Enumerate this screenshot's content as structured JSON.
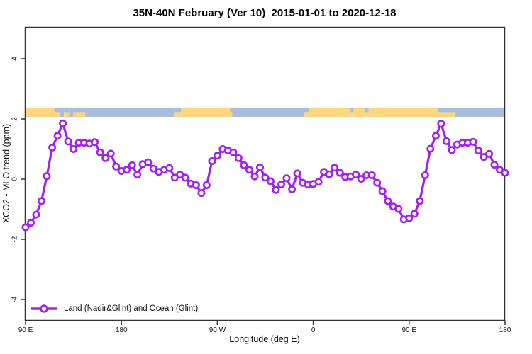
{
  "chart_data": {
    "type": "line",
    "title": "35N-40N February (Ver 10)  2015-01-01 to 2020-12-18",
    "xlabel": "Longitude (deg E)",
    "ylabel": "XCO2 - MLO trend (ppm)",
    "grid": false,
    "ylim": [
      -4.7,
      5.05
    ],
    "x_axis_note": "longitude wraps eastward from 90E through 180, 90W, 0, 90E to 180; x stored as degrees east of start (0-450)",
    "xlim": [
      0,
      450
    ],
    "x_ticks": [
      {
        "pos": 0,
        "label": "90 E"
      },
      {
        "pos": 90,
        "label": "180"
      },
      {
        "pos": 180,
        "label": "90 W"
      },
      {
        "pos": 270,
        "label": "0"
      },
      {
        "pos": 360,
        "label": "90 E"
      },
      {
        "pos": 450,
        "label": "180"
      }
    ],
    "y_ticks": [
      {
        "pos": -4,
        "label": "-4"
      },
      {
        "pos": -2,
        "label": "-2"
      },
      {
        "pos": 0,
        "label": "0"
      },
      {
        "pos": 2,
        "label": "2"
      },
      {
        "pos": 4,
        "label": "4"
      }
    ],
    "legend": {
      "position": "bottom-left",
      "label": "Land (Nadir&Glint) and Ocean (Glint)"
    },
    "colors": {
      "line": "#A020F0",
      "land": "#FCD77F",
      "ocean": "#A9BEDB",
      "axis": "#333333"
    },
    "surface_band": {
      "description": "land(yellow)/ocean(blue) strip along longitude",
      "y_top": 2.38,
      "y_bottom": 2.07,
      "segments": [
        {
          "from": 0,
          "to": 27,
          "type": "land"
        },
        {
          "from": 27,
          "to": 32,
          "type": "mixed"
        },
        {
          "from": 32,
          "to": 36,
          "type": "ocean"
        },
        {
          "from": 36,
          "to": 41,
          "type": "mixed"
        },
        {
          "from": 41,
          "to": 45,
          "type": "ocean"
        },
        {
          "from": 45,
          "to": 56,
          "type": "mixed"
        },
        {
          "from": 56,
          "to": 140,
          "type": "ocean"
        },
        {
          "from": 140,
          "to": 146,
          "type": "mixed"
        },
        {
          "from": 146,
          "to": 192,
          "type": "land"
        },
        {
          "from": 192,
          "to": 194,
          "type": "mixed"
        },
        {
          "from": 194,
          "to": 261,
          "type": "ocean"
        },
        {
          "from": 261,
          "to": 266,
          "type": "mixed"
        },
        {
          "from": 266,
          "to": 305,
          "type": "land"
        },
        {
          "from": 305,
          "to": 308,
          "type": "mixed"
        },
        {
          "from": 308,
          "to": 318,
          "type": "land"
        },
        {
          "from": 318,
          "to": 322,
          "type": "mixed"
        },
        {
          "from": 322,
          "to": 387,
          "type": "land"
        },
        {
          "from": 387,
          "to": 403,
          "type": "mixed"
        },
        {
          "from": 403,
          "to": 450,
          "type": "ocean"
        }
      ]
    },
    "series": [
      {
        "name": "Land (Nadir&Glint) and Ocean (Glint)",
        "color": "#A020F0",
        "marker": "open-circle",
        "x": [
          0,
          5,
          10,
          15,
          20,
          25,
          30,
          35,
          40,
          45,
          50,
          55,
          60,
          65,
          70,
          75,
          80,
          85,
          90,
          95,
          100,
          105,
          110,
          115,
          120,
          125,
          130,
          135,
          140,
          145,
          150,
          155,
          160,
          165,
          170,
          175,
          180,
          185,
          190,
          195,
          200,
          205,
          210,
          215,
          220,
          225,
          230,
          235,
          240,
          245,
          250,
          255,
          260,
          265,
          270,
          275,
          280,
          285,
          290,
          295,
          300,
          305,
          310,
          315,
          320,
          325,
          330,
          335,
          340,
          345,
          350,
          355,
          360,
          365,
          370,
          375,
          380,
          385,
          390,
          395,
          400,
          405,
          410,
          415,
          420,
          425,
          430,
          435,
          440,
          445,
          450
        ],
        "y": [
          -1.6,
          -1.45,
          -1.18,
          -0.73,
          0.1,
          1.05,
          1.44,
          1.85,
          1.25,
          1.0,
          1.21,
          1.21,
          1.18,
          1.23,
          0.89,
          0.7,
          0.85,
          0.42,
          0.27,
          0.31,
          0.46,
          0.15,
          0.5,
          0.56,
          0.35,
          0.24,
          0.31,
          0.37,
          0.05,
          0.15,
          0.05,
          -0.15,
          -0.2,
          -0.46,
          -0.2,
          0.6,
          0.78,
          1.0,
          0.95,
          0.89,
          0.7,
          0.46,
          0.31,
          0.09,
          0.39,
          0.05,
          -0.07,
          -0.36,
          -0.18,
          0.03,
          -0.34,
          0.19,
          -0.12,
          -0.18,
          -0.16,
          -0.09,
          0.24,
          0.16,
          0.38,
          0.21,
          0.07,
          0.09,
          0.15,
          0.01,
          0.13,
          0.13,
          -0.12,
          -0.4,
          -0.73,
          -0.91,
          -0.99,
          -1.34,
          -1.3,
          -1.15,
          -0.73,
          0.13,
          1.01,
          1.44,
          1.84,
          1.26,
          0.97,
          1.15,
          1.21,
          1.21,
          1.24,
          0.95,
          0.74,
          0.84,
          0.48,
          0.31,
          0.21
        ]
      }
    ]
  }
}
